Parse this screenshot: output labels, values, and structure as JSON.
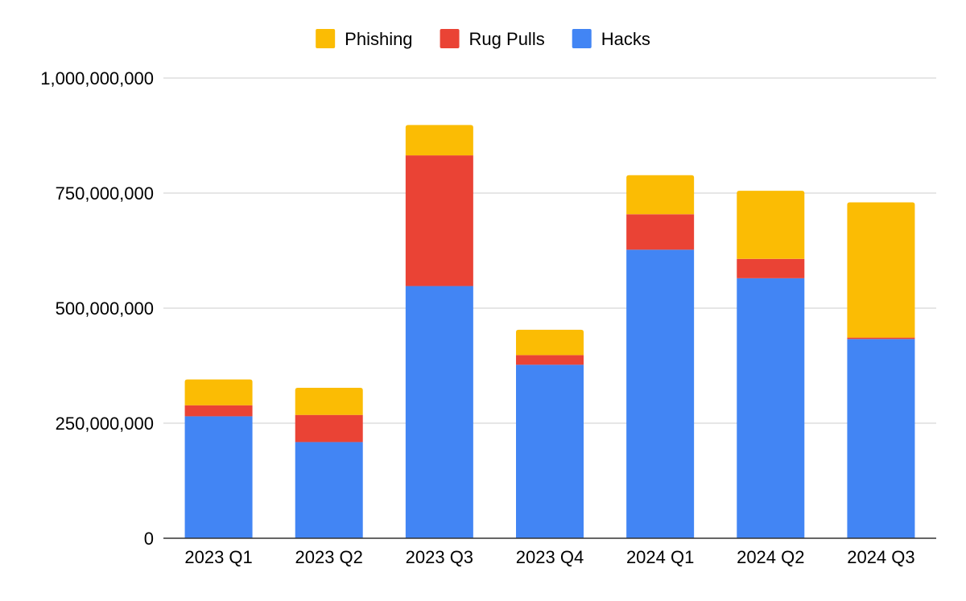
{
  "chart_data": {
    "type": "bar",
    "stacked": true,
    "title": "",
    "xlabel": "",
    "ylabel": "",
    "categories": [
      "2023 Q1",
      "2023 Q2",
      "2023 Q3",
      "2023 Q4",
      "2024 Q1",
      "2024 Q2",
      "2024 Q3"
    ],
    "series": [
      {
        "name": "Hacks",
        "color": "#4285F4",
        "values": [
          265000000,
          209000000,
          548000000,
          377000000,
          627000000,
          565000000,
          433000000
        ]
      },
      {
        "name": "Rug Pulls",
        "color": "#EA4335",
        "values": [
          24000000,
          59000000,
          284000000,
          21000000,
          77000000,
          42000000,
          3000000
        ]
      },
      {
        "name": "Phishing",
        "color": "#FBBC04",
        "values": [
          56000000,
          59000000,
          66000000,
          55000000,
          85000000,
          148000000,
          294000000
        ]
      }
    ],
    "legend": {
      "position": "top",
      "order": [
        "Phishing",
        "Rug Pulls",
        "Hacks"
      ]
    },
    "ylim": [
      0,
      1000000000
    ],
    "yticks": [
      {
        "value": 0,
        "label": "0"
      },
      {
        "value": 250000000,
        "label": "250,000,000"
      },
      {
        "value": 500000000,
        "label": "500,000,000"
      },
      {
        "value": 750000000,
        "label": "750,000,000"
      },
      {
        "value": 1000000000,
        "label": "1,000,000,000"
      }
    ],
    "grid": true,
    "gridline_color": "#CCCCCC",
    "axis_color": "#333333"
  }
}
